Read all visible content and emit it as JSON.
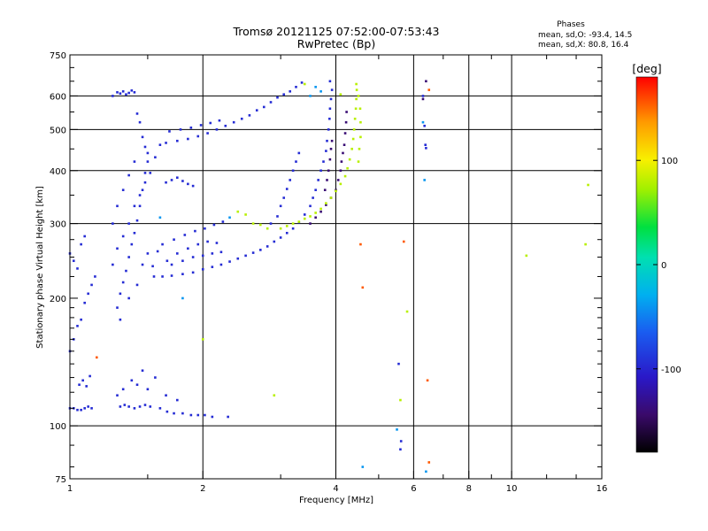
{
  "chart_data": {
    "type": "scatter",
    "title": "Tromsø 20121125 07:52:00-07:53:43",
    "subtitle": "RwPretec (Bp)",
    "xlabel": "Frequency [MHz]",
    "ylabel": "Stationary phase Virtual Height [km]",
    "x_scale": "log",
    "y_scale": "log",
    "xlim": [
      1,
      16
    ],
    "ylim": [
      75,
      750
    ],
    "x_ticks": [
      1,
      2,
      4,
      6,
      8,
      10,
      16
    ],
    "x_ticklabels": [
      "1",
      "2",
      "4",
      "6",
      "8",
      "10",
      "16"
    ],
    "x_gridlines": [
      2,
      4,
      6,
      8,
      10
    ],
    "y_ticks": [
      75,
      100,
      200,
      300,
      400,
      500,
      600,
      750
    ],
    "y_ticklabels": [
      "75",
      "100",
      "200",
      "300",
      "400",
      "500",
      "600",
      "750"
    ],
    "y_gridlines": [
      100,
      300,
      400,
      500,
      600
    ],
    "grid": true,
    "phases_box": {
      "title": "Phases",
      "line_o": "mean, sd,O: -93.4, 14.5",
      "line_x": "mean, sd,X:  80.8, 16.4"
    },
    "colorbar": {
      "label": "[deg]",
      "range": [
        -180,
        180
      ],
      "ticks": [
        100,
        0,
        -100
      ],
      "ticklabels": [
        "100",
        "0",
        "-100"
      ],
      "placement": "right"
    },
    "series": [
      {
        "color_phase": -95,
        "points": [
          [
            1.0,
            110
          ],
          [
            1.02,
            110
          ],
          [
            1.04,
            109
          ],
          [
            1.06,
            109
          ],
          [
            1.08,
            110
          ],
          [
            1.1,
            111
          ],
          [
            1.12,
            110
          ],
          [
            1.3,
            111
          ],
          [
            1.33,
            112
          ],
          [
            1.36,
            111
          ],
          [
            1.4,
            110
          ],
          [
            1.44,
            111
          ],
          [
            1.48,
            112
          ],
          [
            1.52,
            111
          ],
          [
            1.6,
            110
          ],
          [
            1.66,
            108
          ],
          [
            1.72,
            107
          ],
          [
            1.8,
            107
          ],
          [
            1.88,
            106
          ],
          [
            1.95,
            106
          ],
          [
            2.02,
            106
          ],
          [
            2.1,
            105
          ],
          [
            2.28,
            105
          ],
          [
            1.05,
            125
          ],
          [
            1.07,
            128
          ],
          [
            1.09,
            124
          ],
          [
            1.11,
            131
          ],
          [
            1.28,
            118
          ],
          [
            1.32,
            122
          ],
          [
            1.38,
            128
          ],
          [
            1.42,
            125
          ],
          [
            1.46,
            135
          ],
          [
            1.5,
            122
          ],
          [
            1.56,
            130
          ],
          [
            1.65,
            118
          ],
          [
            1.75,
            115
          ],
          [
            1.0,
            150
          ],
          [
            1.02,
            160
          ],
          [
            1.04,
            172
          ],
          [
            1.06,
            178
          ],
          [
            1.08,
            195
          ],
          [
            1.1,
            205
          ],
          [
            1.12,
            215
          ],
          [
            1.14,
            225
          ],
          [
            1.0,
            255
          ],
          [
            1.02,
            245
          ],
          [
            1.04,
            235
          ],
          [
            1.06,
            268
          ],
          [
            1.08,
            280
          ],
          [
            1.28,
            190
          ],
          [
            1.3,
            205
          ],
          [
            1.32,
            218
          ],
          [
            1.34,
            232
          ],
          [
            1.36,
            250
          ],
          [
            1.38,
            268
          ],
          [
            1.4,
            285
          ],
          [
            1.42,
            305
          ],
          [
            1.44,
            330
          ],
          [
            1.46,
            360
          ],
          [
            1.48,
            395
          ],
          [
            1.5,
            420
          ],
          [
            1.3,
            178
          ],
          [
            1.36,
            200
          ],
          [
            1.42,
            215
          ],
          [
            1.46,
            240
          ],
          [
            1.5,
            255
          ],
          [
            1.54,
            238
          ],
          [
            1.58,
            258
          ],
          [
            1.62,
            268
          ],
          [
            1.66,
            245
          ],
          [
            1.25,
            240
          ],
          [
            1.28,
            262
          ],
          [
            1.32,
            280
          ],
          [
            1.36,
            300
          ],
          [
            1.4,
            330
          ],
          [
            1.44,
            350
          ],
          [
            1.48,
            375
          ],
          [
            1.52,
            395
          ],
          [
            1.56,
            430
          ],
          [
            1.6,
            460
          ],
          [
            1.25,
            300
          ],
          [
            1.28,
            330
          ],
          [
            1.32,
            360
          ],
          [
            1.36,
            390
          ],
          [
            1.4,
            420
          ],
          [
            1.55,
            225
          ],
          [
            1.62,
            225
          ],
          [
            1.7,
            226
          ],
          [
            1.8,
            228
          ],
          [
            1.9,
            230
          ],
          [
            2.0,
            234
          ],
          [
            2.1,
            237
          ],
          [
            2.2,
            240
          ],
          [
            2.3,
            244
          ],
          [
            2.4,
            248
          ],
          [
            2.5,
            252
          ],
          [
            2.6,
            256
          ],
          [
            2.7,
            260
          ],
          [
            2.8,
            265
          ],
          [
            2.9,
            272
          ],
          [
            3.0,
            278
          ],
          [
            3.1,
            285
          ],
          [
            3.2,
            292
          ],
          [
            3.3,
            302
          ],
          [
            3.4,
            315
          ],
          [
            3.5,
            330
          ],
          [
            3.55,
            345
          ],
          [
            3.6,
            360
          ],
          [
            3.65,
            380
          ],
          [
            3.7,
            400
          ],
          [
            3.75,
            420
          ],
          [
            3.8,
            445
          ],
          [
            3.82,
            470
          ],
          [
            3.85,
            500
          ],
          [
            3.87,
            530
          ],
          [
            3.88,
            560
          ],
          [
            3.9,
            590
          ],
          [
            3.92,
            620
          ],
          [
            3.88,
            650
          ],
          [
            1.7,
            240
          ],
          [
            1.8,
            245
          ],
          [
            1.9,
            250
          ],
          [
            2.0,
            252
          ],
          [
            2.1,
            255
          ],
          [
            2.2,
            257
          ],
          [
            1.75,
            255
          ],
          [
            1.85,
            262
          ],
          [
            1.95,
            268
          ],
          [
            2.05,
            272
          ],
          [
            2.15,
            270
          ],
          [
            1.72,
            275
          ],
          [
            1.82,
            282
          ],
          [
            1.92,
            288
          ],
          [
            2.02,
            292
          ],
          [
            2.12,
            298
          ],
          [
            2.22,
            303
          ],
          [
            2.85,
            300
          ],
          [
            2.95,
            312
          ],
          [
            3.0,
            330
          ],
          [
            3.05,
            345
          ],
          [
            3.1,
            362
          ],
          [
            3.15,
            380
          ],
          [
            3.2,
            400
          ],
          [
            3.25,
            420
          ],
          [
            3.3,
            440
          ],
          [
            1.65,
            465
          ],
          [
            1.75,
            470
          ],
          [
            1.85,
            475
          ],
          [
            1.95,
            482
          ],
          [
            2.05,
            490
          ],
          [
            2.15,
            500
          ],
          [
            2.25,
            510
          ],
          [
            2.35,
            520
          ],
          [
            2.45,
            530
          ],
          [
            2.55,
            540
          ],
          [
            2.65,
            555
          ],
          [
            2.75,
            565
          ],
          [
            2.85,
            580
          ],
          [
            2.95,
            595
          ],
          [
            3.05,
            605
          ],
          [
            3.15,
            615
          ],
          [
            3.25,
            630
          ],
          [
            3.35,
            645
          ],
          [
            1.68,
            495
          ],
          [
            1.78,
            500
          ],
          [
            1.88,
            505
          ],
          [
            1.98,
            512
          ],
          [
            2.08,
            518
          ],
          [
            2.18,
            525
          ],
          [
            1.25,
            600
          ],
          [
            1.28,
            612
          ],
          [
            1.3,
            608
          ],
          [
            1.32,
            615
          ],
          [
            1.34,
            605
          ],
          [
            1.36,
            610
          ],
          [
            1.38,
            618
          ],
          [
            1.4,
            612
          ],
          [
            1.42,
            545
          ],
          [
            1.44,
            520
          ],
          [
            1.46,
            480
          ],
          [
            1.48,
            455
          ],
          [
            1.5,
            440
          ],
          [
            1.65,
            375
          ],
          [
            1.7,
            380
          ],
          [
            1.75,
            385
          ],
          [
            1.8,
            378
          ],
          [
            1.85,
            372
          ],
          [
            1.9,
            368
          ],
          [
            5.55,
            140
          ],
          [
            5.6,
            88
          ],
          [
            5.62,
            92
          ],
          [
            6.3,
            600
          ],
          [
            6.35,
            510
          ],
          [
            6.38,
            460
          ],
          [
            6.4,
            452
          ]
        ]
      },
      {
        "color_phase": -140,
        "points": [
          [
            3.5,
            300
          ],
          [
            3.6,
            310
          ],
          [
            3.7,
            320
          ],
          [
            3.8,
            332
          ],
          [
            3.9,
            345
          ],
          [
            4.0,
            360
          ],
          [
            4.05,
            380
          ],
          [
            4.1,
            400
          ],
          [
            4.12,
            420
          ],
          [
            4.15,
            440
          ],
          [
            4.18,
            460
          ],
          [
            4.2,
            490
          ],
          [
            4.22,
            520
          ],
          [
            4.23,
            550
          ],
          [
            3.78,
            360
          ],
          [
            3.82,
            380
          ],
          [
            3.85,
            400
          ],
          [
            3.88,
            425
          ],
          [
            3.9,
            450
          ],
          [
            3.92,
            470
          ],
          [
            6.4,
            650
          ],
          [
            6.3,
            590
          ]
        ]
      },
      {
        "color_phase": 80,
        "points": [
          [
            3.0,
            292
          ],
          [
            3.1,
            296
          ],
          [
            3.2,
            300
          ],
          [
            3.3,
            303
          ],
          [
            3.4,
            308
          ],
          [
            3.5,
            312
          ],
          [
            3.6,
            318
          ],
          [
            3.7,
            325
          ],
          [
            3.8,
            335
          ],
          [
            3.9,
            345
          ],
          [
            4.0,
            358
          ],
          [
            4.1,
            372
          ],
          [
            4.2,
            388
          ],
          [
            4.25,
            405
          ],
          [
            4.3,
            425
          ],
          [
            4.35,
            450
          ],
          [
            4.38,
            475
          ],
          [
            4.4,
            500
          ],
          [
            4.42,
            530
          ],
          [
            4.44,
            560
          ],
          [
            4.45,
            590
          ],
          [
            4.46,
            620
          ],
          [
            2.4,
            320
          ],
          [
            2.5,
            315
          ],
          [
            2.6,
            300
          ],
          [
            2.7,
            298
          ],
          [
            2.8,
            292
          ],
          [
            4.5,
            420
          ],
          [
            4.52,
            450
          ],
          [
            4.55,
            480
          ],
          [
            4.55,
            520
          ],
          [
            4.54,
            560
          ],
          [
            4.5,
            600
          ],
          [
            4.45,
            640
          ],
          [
            14.9,
            370
          ],
          [
            14.7,
            268
          ],
          [
            10.8,
            252
          ],
          [
            5.8,
            186
          ],
          [
            5.6,
            115
          ],
          [
            2.9,
            118
          ],
          [
            2.0,
            160
          ],
          [
            4.1,
            605
          ],
          [
            3.4,
            640
          ]
        ]
      },
      {
        "color_phase": -40,
        "points": [
          [
            3.6,
            630
          ],
          [
            3.7,
            615
          ],
          [
            3.5,
            600
          ],
          [
            6.3,
            520
          ],
          [
            6.35,
            380
          ],
          [
            6.4,
            78
          ],
          [
            4.6,
            80
          ],
          [
            5.5,
            98
          ],
          [
            1.8,
            200
          ],
          [
            1.6,
            310
          ],
          [
            2.3,
            310
          ]
        ]
      },
      {
        "color_phase": 155,
        "points": [
          [
            4.55,
            268
          ],
          [
            5.7,
            272
          ],
          [
            4.6,
            212
          ],
          [
            6.5,
            620
          ],
          [
            6.45,
            128
          ],
          [
            6.5,
            82
          ],
          [
            1.15,
            145
          ]
        ]
      }
    ]
  }
}
